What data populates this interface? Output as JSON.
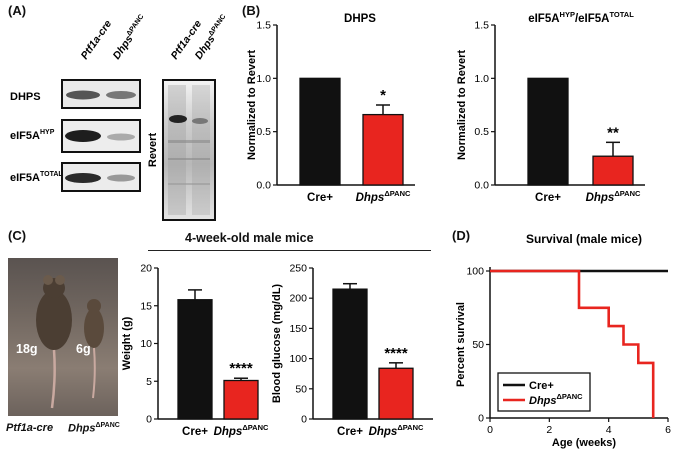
{
  "panel_labels": {
    "a": "(A)",
    "b": "(B)",
    "c": "(C)",
    "d": "(D)"
  },
  "colors": {
    "control": "#111111",
    "knockout": "#e8251f",
    "survival_ko": "#e8251f"
  },
  "blot": {
    "lanes_left": [
      "Ptf1a-cre",
      "Dhps"
    ],
    "lanes_left_sup": "ΔPANC",
    "lanes_right": [
      "Ptf1a-cre",
      "Dhps"
    ],
    "rows": [
      {
        "label": "DHPS",
        "sup": ""
      },
      {
        "label": "eIF5A",
        "sup": "HYP"
      },
      {
        "label": "eIF5A",
        "sup": "TOTAL"
      }
    ],
    "revert_label": "Revert"
  },
  "chart_data": [
    {
      "type": "bar",
      "panel": "B-left",
      "title": "DHPS",
      "ylabel": "Normalized to Revert",
      "ylim": [
        0,
        1.5
      ],
      "yticks": [
        "0.0",
        "0.5",
        "1.0",
        "1.5"
      ],
      "categories": [
        "Cre+",
        "Dhps"
      ],
      "category_sup": [
        "",
        "ΔPANC"
      ],
      "values": [
        1.0,
        0.66
      ],
      "errors": [
        0,
        0.09
      ],
      "annotations": [
        "",
        "*"
      ]
    },
    {
      "type": "bar",
      "panel": "B-right",
      "title": "eIF5A",
      "title_sup1": "HYP",
      "title_mid": "/eIF5A",
      "title_sup2": "TOTAL",
      "ylabel": "Normalized to Revert",
      "ylim": [
        0,
        1.5
      ],
      "yticks": [
        "0.0",
        "0.5",
        "1.0",
        "1.5"
      ],
      "categories": [
        "Cre+",
        "Dhps"
      ],
      "category_sup": [
        "",
        "ΔPANC"
      ],
      "values": [
        1.0,
        0.27
      ],
      "errors": [
        0,
        0.13
      ],
      "annotations": [
        "",
        "**"
      ]
    },
    {
      "type": "bar",
      "panel": "C-weight",
      "ylabel": "Weight (g)",
      "ylim": [
        0,
        20
      ],
      "yticks": [
        "0",
        "5",
        "10",
        "15",
        "20"
      ],
      "categories": [
        "Cre+",
        "Dhps"
      ],
      "category_sup": [
        "",
        "ΔPANC"
      ],
      "values": [
        15.8,
        5.1
      ],
      "errors": [
        1.3,
        0.3
      ],
      "annotations": [
        "",
        "****"
      ]
    },
    {
      "type": "bar",
      "panel": "C-glucose",
      "ylabel": "Blood glucose (mg/dL)",
      "ylim": [
        0,
        250
      ],
      "yticks": [
        "0",
        "50",
        "100",
        "150",
        "200",
        "250"
      ],
      "categories": [
        "Cre+",
        "Dhps"
      ],
      "category_sup": [
        "",
        "ΔPANC"
      ],
      "values": [
        215,
        84
      ],
      "errors": [
        9,
        9
      ],
      "annotations": [
        "",
        "****"
      ]
    },
    {
      "type": "line",
      "panel": "D",
      "title": "Survival (male mice)",
      "xlabel": "Age (weeks)",
      "ylabel": "Percent survival",
      "xlim": [
        0,
        6
      ],
      "ylim": [
        0,
        100
      ],
      "xticks": [
        "0",
        "2",
        "4",
        "6"
      ],
      "yticks": [
        "0",
        "50",
        "100"
      ],
      "series": [
        {
          "name": "Cre+",
          "sup": "",
          "steps": [
            [
              0,
              100
            ],
            [
              6,
              100
            ]
          ]
        },
        {
          "name": "Dhps",
          "sup": "ΔPANC",
          "steps": [
            [
              0,
              100
            ],
            [
              3,
              100
            ],
            [
              3,
              75
            ],
            [
              4,
              75
            ],
            [
              4,
              62.5
            ],
            [
              4.5,
              62.5
            ],
            [
              4.5,
              50
            ],
            [
              5,
              50
            ],
            [
              5,
              37.5
            ],
            [
              5.5,
              37.5
            ],
            [
              5.5,
              0
            ]
          ]
        }
      ],
      "legend_position": "bottom-left"
    }
  ],
  "panel_c": {
    "header": "4-week-old male mice",
    "photo_weights": [
      "18g",
      "6g"
    ],
    "photo_captions": [
      "Ptf1a-cre",
      "Dhps"
    ],
    "photo_caption_sup": "ΔPANC"
  }
}
